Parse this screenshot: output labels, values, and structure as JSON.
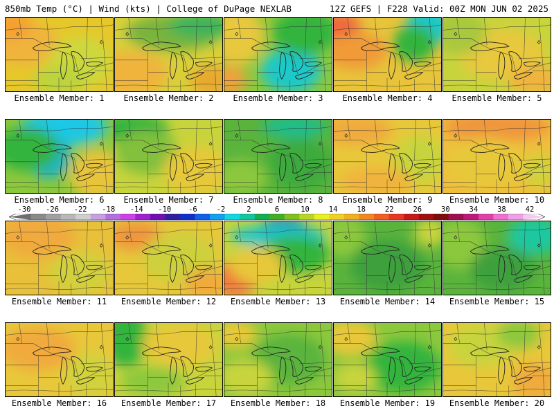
{
  "header": {
    "left": "850mb Temp (°C) | Wind (kts) | College of DuPage NEXLAB",
    "right": "12Z GEFS | F228 Valid: 00Z MON JUN 02 2025"
  },
  "colorbar": {
    "labels": [
      "-30",
      "-26",
      "-22",
      "-18",
      "-14",
      "-10",
      "-6",
      "-2",
      "2",
      "6",
      "10",
      "14",
      "18",
      "22",
      "26",
      "30",
      "34",
      "38",
      "42"
    ],
    "colors": [
      "#6e6e6e",
      "#8a8a8a",
      "#a0a0a0",
      "#b8b8b8",
      "#cfcfcf",
      "#c8a0e0",
      "#b46ee0",
      "#d040e8",
      "#a020d0",
      "#7010b0",
      "#3020a0",
      "#1030c8",
      "#1060e8",
      "#10a0f0",
      "#10d8e0",
      "#10c8a0",
      "#10b050",
      "#40b020",
      "#80c020",
      "#b8d820",
      "#e8f020",
      "#f0d020",
      "#f0b020",
      "#f08820",
      "#f06020",
      "#e83820",
      "#c81818",
      "#a01010",
      "#800c0c",
      "#a01050",
      "#c01878",
      "#e040a8",
      "#f070d0",
      "#f0a0e8",
      "#f8c8f0"
    ]
  },
  "members": [
    {
      "label": "Ensemble Member: 1",
      "base": "#e6c82a",
      "blobs": [
        [
          "#f0b43c",
          0.15,
          0.35,
          0.35,
          0.3
        ],
        [
          "#cdd83c",
          0.7,
          0.6,
          0.3,
          0.35
        ],
        [
          "#f5a032",
          0.05,
          0.1,
          0.2,
          0.2
        ],
        [
          "#bcd43c",
          0.5,
          0.85,
          0.25,
          0.2
        ]
      ]
    },
    {
      "label": "Ensemble Member: 2",
      "base": "#d9d03a",
      "blobs": [
        [
          "#78b43c",
          0.55,
          0.2,
          0.45,
          0.25
        ],
        [
          "#3cb45a",
          0.8,
          0.1,
          0.3,
          0.18
        ],
        [
          "#f0b43c",
          0.15,
          0.75,
          0.35,
          0.3
        ],
        [
          "#e8a82e",
          0.9,
          0.85,
          0.2,
          0.2
        ]
      ]
    },
    {
      "label": "Ensemble Member: 3",
      "base": "#8cc83c",
      "blobs": [
        [
          "#1ec8c8",
          0.62,
          0.72,
          0.28,
          0.3
        ],
        [
          "#32b43c",
          0.75,
          0.2,
          0.3,
          0.3
        ],
        [
          "#e8c83c",
          0.12,
          0.25,
          0.25,
          0.4
        ],
        [
          "#f0a03c",
          0.05,
          0.85,
          0.15,
          0.2
        ]
      ]
    },
    {
      "label": "Ensemble Member: 4",
      "base": "#e8c43a",
      "blobs": [
        [
          "#f0643c",
          0.05,
          0.12,
          0.2,
          0.18
        ],
        [
          "#1ec8c8",
          0.88,
          0.1,
          0.2,
          0.28
        ],
        [
          "#32b43c",
          0.75,
          0.35,
          0.2,
          0.25
        ],
        [
          "#f09a38",
          0.2,
          0.45,
          0.3,
          0.25
        ]
      ]
    },
    {
      "label": "Ensemble Member: 5",
      "base": "#c8d43c",
      "blobs": [
        [
          "#e8c83c",
          0.55,
          0.5,
          0.4,
          0.35
        ],
        [
          "#f0b43c",
          0.85,
          0.85,
          0.25,
          0.2
        ],
        [
          "#a8c83c",
          0.15,
          0.2,
          0.25,
          0.3
        ]
      ]
    },
    {
      "label": "Ensemble Member: 6",
      "base": "#8cc83c",
      "blobs": [
        [
          "#1ec8e6",
          0.55,
          0.1,
          0.4,
          0.25
        ],
        [
          "#1eb4c8",
          0.4,
          0.5,
          0.2,
          0.3
        ],
        [
          "#32b43c",
          0.2,
          0.4,
          0.3,
          0.3
        ],
        [
          "#e8c43a",
          0.85,
          0.75,
          0.25,
          0.35
        ]
      ]
    },
    {
      "label": "Ensemble Member: 7",
      "base": "#c8d43c",
      "blobs": [
        [
          "#32b43c",
          0.15,
          0.12,
          0.35,
          0.2
        ],
        [
          "#82c03c",
          0.3,
          0.45,
          0.3,
          0.3
        ],
        [
          "#e6c83a",
          0.75,
          0.7,
          0.3,
          0.35
        ]
      ]
    },
    {
      "label": "Ensemble Member: 8",
      "base": "#5ab43c",
      "blobs": [
        [
          "#1ebe8c",
          0.65,
          0.1,
          0.3,
          0.15
        ],
        [
          "#3caa3c",
          0.7,
          0.6,
          0.3,
          0.35
        ],
        [
          "#8cc83c",
          0.15,
          0.8,
          0.25,
          0.25
        ]
      ]
    },
    {
      "label": "Ensemble Member: 9",
      "base": "#e8c83a",
      "blobs": [
        [
          "#f0aa3c",
          0.2,
          0.15,
          0.35,
          0.2
        ],
        [
          "#c8d43c",
          0.8,
          0.55,
          0.25,
          0.35
        ],
        [
          "#f0b43c",
          0.4,
          0.85,
          0.35,
          0.2
        ]
      ]
    },
    {
      "label": "Ensemble Member: 10",
      "base": "#f0be3c",
      "blobs": [
        [
          "#f0963c",
          0.5,
          0.1,
          0.5,
          0.2
        ],
        [
          "#e8c83a",
          0.4,
          0.6,
          0.4,
          0.35
        ],
        [
          "#d2d23c",
          0.9,
          0.7,
          0.15,
          0.25
        ]
      ]
    },
    {
      "label": "Ensemble Member: 11",
      "base": "#e8c03a",
      "blobs": [
        [
          "#f0aa3c",
          0.3,
          0.2,
          0.35,
          0.3
        ],
        [
          "#d2d03c",
          0.7,
          0.7,
          0.3,
          0.3
        ]
      ]
    },
    {
      "label": "Ensemble Member: 12",
      "base": "#e6c83a",
      "blobs": [
        [
          "#f0963c",
          0.2,
          0.2,
          0.25,
          0.2
        ],
        [
          "#cdd03c",
          0.6,
          0.5,
          0.35,
          0.35
        ],
        [
          "#f0aa3c",
          0.85,
          0.85,
          0.2,
          0.2
        ]
      ]
    },
    {
      "label": "Ensemble Member: 13",
      "base": "#c8d43c",
      "blobs": [
        [
          "#1e64c8",
          0.55,
          0.08,
          0.22,
          0.12
        ],
        [
          "#1ec8c8",
          0.5,
          0.2,
          0.45,
          0.15
        ],
        [
          "#32b43c",
          0.65,
          0.45,
          0.35,
          0.25
        ],
        [
          "#f07a3c",
          0.1,
          0.8,
          0.2,
          0.25
        ],
        [
          "#e8c83a",
          0.3,
          0.6,
          0.25,
          0.25
        ]
      ]
    },
    {
      "label": "Ensemble Member: 14",
      "base": "#5ab43c",
      "blobs": [
        [
          "#8cc83c",
          0.1,
          0.2,
          0.2,
          0.3
        ],
        [
          "#3ca03c",
          0.5,
          0.6,
          0.35,
          0.35
        ],
        [
          "#c8d43c",
          0.9,
          0.15,
          0.15,
          0.2
        ]
      ]
    },
    {
      "label": "Ensemble Member: 15",
      "base": "#5ab43c",
      "blobs": [
        [
          "#1ec8a0",
          0.85,
          0.2,
          0.25,
          0.25
        ],
        [
          "#8cc83c",
          0.15,
          0.3,
          0.25,
          0.35
        ],
        [
          "#3ca03c",
          0.55,
          0.65,
          0.3,
          0.3
        ]
      ]
    },
    {
      "label": "Ensemble Member: 16",
      "base": "#e8c83a",
      "blobs": [
        [
          "#f0aa3c",
          0.3,
          0.35,
          0.35,
          0.3
        ],
        [
          "#d2d23c",
          0.8,
          0.7,
          0.25,
          0.3
        ]
      ]
    },
    {
      "label": "Ensemble Member: 17",
      "base": "#c8d43c",
      "blobs": [
        [
          "#32b43c",
          0.1,
          0.2,
          0.2,
          0.4
        ],
        [
          "#e8c83a",
          0.6,
          0.3,
          0.35,
          0.3
        ],
        [
          "#8cc83c",
          0.35,
          0.8,
          0.3,
          0.2
        ]
      ]
    },
    {
      "label": "Ensemble Member: 18",
      "base": "#8cc83c",
      "blobs": [
        [
          "#5ab43c",
          0.6,
          0.5,
          0.35,
          0.35
        ],
        [
          "#c8d43c",
          0.2,
          0.75,
          0.25,
          0.25
        ],
        [
          "#e8c83a",
          0.1,
          0.15,
          0.2,
          0.2
        ]
      ]
    },
    {
      "label": "Ensemble Member: 19",
      "base": "#8cc83c",
      "blobs": [
        [
          "#32b43c",
          0.65,
          0.6,
          0.35,
          0.35
        ],
        [
          "#e8c83a",
          0.15,
          0.2,
          0.25,
          0.25
        ],
        [
          "#c8d43c",
          0.2,
          0.75,
          0.2,
          0.2
        ]
      ]
    },
    {
      "label": "Ensemble Member: 20",
      "base": "#e8c83a",
      "blobs": [
        [
          "#f0aa3c",
          0.85,
          0.8,
          0.2,
          0.25
        ],
        [
          "#c8d43c",
          0.35,
          0.3,
          0.3,
          0.3
        ],
        [
          "#8cc83c",
          0.7,
          0.15,
          0.2,
          0.2
        ]
      ]
    }
  ]
}
